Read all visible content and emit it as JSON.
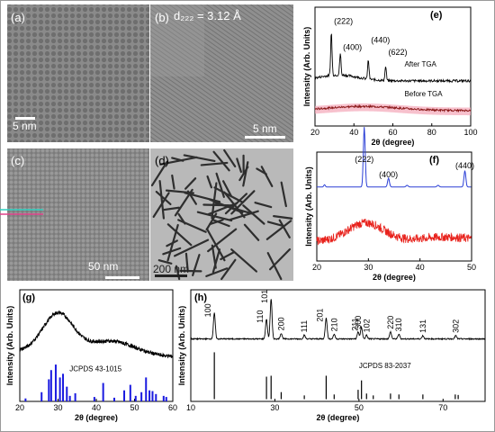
{
  "panels": {
    "a": {
      "label": "(a)",
      "scale": "5 nm"
    },
    "b": {
      "label": "(b)",
      "annotation": "d₂₂₂ = 3.12 Å",
      "scale": "5 nm"
    },
    "c": {
      "label": "(c)",
      "scale": "50 nm"
    },
    "d": {
      "label": "(d)",
      "scale": "200 nm"
    }
  },
  "colors": {
    "black": "#000000",
    "red": "#e8221c",
    "pink_band": "#f4a6b8",
    "blue": "#2b3fd6",
    "ref_blue": "#1a1ae0"
  },
  "chart_data": [
    {
      "id": "e",
      "type": "line",
      "label": "(e)",
      "xlabel": "2θ (degree)",
      "ylabel": "Intensity (Arb. Units)",
      "xlim": [
        20,
        100
      ],
      "xticks": [
        20,
        40,
        60,
        80,
        100
      ],
      "series": [
        {
          "name": "After TGA",
          "color": "#000000",
          "peaks": [
            {
              "x": 28.4,
              "label": "(222)"
            },
            {
              "x": 33.0,
              "label": "(400)"
            },
            {
              "x": 47.4,
              "label": "(440)"
            },
            {
              "x": 56.3,
              "label": "(622)"
            }
          ]
        },
        {
          "name": "Before TGA",
          "color": "#8b1a1a"
        }
      ]
    },
    {
      "id": "f",
      "type": "line",
      "label": "(f)",
      "xlabel": "2θ (degree)",
      "ylabel": "Intensity (Arb. Units)",
      "xlim": [
        20,
        50
      ],
      "xticks": [
        20,
        30,
        40,
        50
      ],
      "peaks": [
        {
          "x": 29.2,
          "label": "(222)"
        },
        {
          "x": 33.9,
          "label": "(400)"
        },
        {
          "x": 48.7,
          "label": "(440)"
        }
      ]
    },
    {
      "id": "g",
      "type": "line",
      "label": "(g)",
      "xlabel": "2θ (degree)",
      "ylabel": "Intensity (Arb. Units)",
      "xlim": [
        20,
        60
      ],
      "xticks": [
        20,
        30,
        40,
        50,
        60
      ],
      "reference": "JCPDS 43-1015",
      "ref_lines": [
        {
          "x": 21.5,
          "h": 0.08
        },
        {
          "x": 25.7,
          "h": 0.25
        },
        {
          "x": 27.6,
          "h": 0.6
        },
        {
          "x": 28.2,
          "h": 0.85
        },
        {
          "x": 29.4,
          "h": 1.0
        },
        {
          "x": 30.5,
          "h": 0.65
        },
        {
          "x": 31.3,
          "h": 0.75
        },
        {
          "x": 32.3,
          "h": 0.4
        },
        {
          "x": 33.1,
          "h": 0.15
        },
        {
          "x": 34.5,
          "h": 0.22
        },
        {
          "x": 39.5,
          "h": 0.12
        },
        {
          "x": 41.8,
          "h": 0.5
        },
        {
          "x": 44.7,
          "h": 0.1
        },
        {
          "x": 47.3,
          "h": 0.3
        },
        {
          "x": 48.9,
          "h": 0.45
        },
        {
          "x": 50.3,
          "h": 0.15
        },
        {
          "x": 51.8,
          "h": 0.25
        },
        {
          "x": 53.0,
          "h": 0.65
        },
        {
          "x": 53.9,
          "h": 0.3
        },
        {
          "x": 54.7,
          "h": 0.28
        },
        {
          "x": 55.6,
          "h": 0.2
        },
        {
          "x": 57.6,
          "h": 0.15
        },
        {
          "x": 58.3,
          "h": 0.12
        }
      ]
    },
    {
      "id": "h",
      "type": "line",
      "label": "(h)",
      "xlabel": "2θ (degree)",
      "ylabel": "Intensity (Arb. Units)",
      "xlim": [
        10,
        80
      ],
      "xticks": [
        10,
        30,
        50,
        70
      ],
      "reference": "JCPDS 83-2037",
      "peaks": [
        {
          "x": 15.6,
          "h": 0.55,
          "label": "100"
        },
        {
          "x": 28.0,
          "h": 0.42,
          "label": "110"
        },
        {
          "x": 29.1,
          "h": 0.85,
          "label": "101"
        },
        {
          "x": 31.5,
          "h": 0.12,
          "label": "200"
        },
        {
          "x": 37.0,
          "h": 0.08,
          "label": "111"
        },
        {
          "x": 42.2,
          "h": 0.45,
          "label": "201"
        },
        {
          "x": 44.1,
          "h": 0.1,
          "label": "210"
        },
        {
          "x": 49.8,
          "h": 0.15,
          "label": "300"
        },
        {
          "x": 50.6,
          "h": 0.25,
          "label": "211"
        },
        {
          "x": 51.8,
          "h": 0.08,
          "label": "102"
        },
        {
          "x": 57.5,
          "h": 0.15,
          "label": "220"
        },
        {
          "x": 59.5,
          "h": 0.1,
          "label": "310"
        },
        {
          "x": 65.2,
          "h": 0.07,
          "label": "131"
        },
        {
          "x": 73.0,
          "h": 0.07,
          "label": "302"
        }
      ],
      "ref_lines": [
        {
          "x": 15.6,
          "h": 1.0
        },
        {
          "x": 28.0,
          "h": 0.48
        },
        {
          "x": 29.1,
          "h": 0.5
        },
        {
          "x": 31.5,
          "h": 0.15
        },
        {
          "x": 37.0,
          "h": 0.08
        },
        {
          "x": 42.2,
          "h": 0.5
        },
        {
          "x": 44.1,
          "h": 0.1
        },
        {
          "x": 49.8,
          "h": 0.2
        },
        {
          "x": 50.6,
          "h": 0.4
        },
        {
          "x": 51.8,
          "h": 0.12
        },
        {
          "x": 53.4,
          "h": 0.08
        },
        {
          "x": 57.5,
          "h": 0.12
        },
        {
          "x": 59.5,
          "h": 0.1
        },
        {
          "x": 65.2,
          "h": 0.1
        },
        {
          "x": 72.9,
          "h": 0.1
        },
        {
          "x": 73.6,
          "h": 0.09
        }
      ]
    }
  ]
}
